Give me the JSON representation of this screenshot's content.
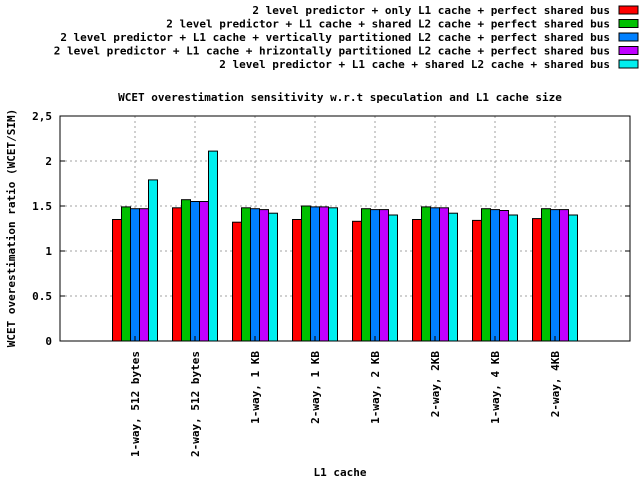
{
  "chart_data": {
    "type": "bar",
    "title": "WCET overestimation sensitivity w.r.t speculation and L1 cache size",
    "xlabel": "L1 cache",
    "ylabel": "WCET overestimation ratio (WCET/SIM)",
    "ylim": [
      0,
      2.5
    ],
    "yticks": [
      "0",
      "0.5",
      "1",
      "1.5",
      "2",
      "2,5"
    ],
    "ytick_values": [
      0,
      0.5,
      1,
      1.5,
      2,
      2.5
    ],
    "grid": true,
    "legend_position": "top-right",
    "categories": [
      "1-way, 512 bytes",
      "2-way, 512 bytes",
      "1-way, 1 KB",
      "2-way, 1 KB",
      "1-way, 2 KB",
      "2-way, 2KB",
      "1-way, 4 KB",
      "2-way, 4KB"
    ],
    "series": [
      {
        "name": "2 level predictor + only L1 cache + perfect shared bus",
        "color": "#ff0000",
        "values": [
          1.35,
          1.48,
          1.32,
          1.35,
          1.33,
          1.35,
          1.34,
          1.36
        ]
      },
      {
        "name": "2 level predictor + L1 cache + shared L2 cache + perfect shared bus",
        "color": "#00c000",
        "values": [
          1.49,
          1.57,
          1.48,
          1.5,
          1.47,
          1.49,
          1.47,
          1.47
        ]
      },
      {
        "name": "2 level predictor + L1 cache + vertically partitioned L2 cache + perfect shared bus",
        "color": "#0080ff",
        "values": [
          1.47,
          1.55,
          1.47,
          1.49,
          1.46,
          1.48,
          1.46,
          1.46
        ]
      },
      {
        "name": "2 level predictor + L1 cache + hrizontally partitioned L2 cache + perfect shared bus",
        "color": "#c000ff",
        "values": [
          1.47,
          1.55,
          1.46,
          1.49,
          1.46,
          1.48,
          1.45,
          1.46
        ]
      },
      {
        "name": "2 level predictor + L1 cache + shared L2 cache + shared bus",
        "color": "#00eeee",
        "values": [
          1.79,
          2.11,
          1.42,
          1.48,
          1.4,
          1.42,
          1.4,
          1.4
        ]
      }
    ]
  }
}
